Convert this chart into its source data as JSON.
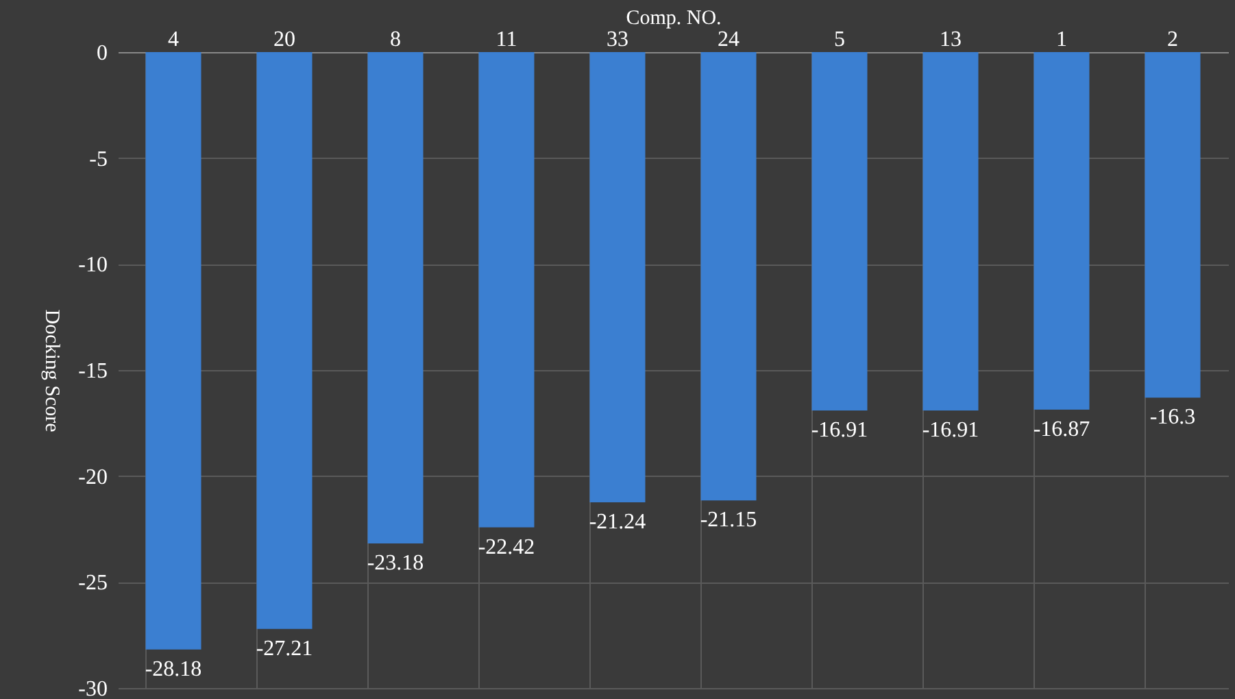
{
  "chart_data": {
    "type": "bar",
    "xlabel": "Comp. NO.",
    "ylabel": "Docking Score",
    "categories": [
      "4",
      "20",
      "8",
      "11",
      "33",
      "24",
      "5",
      "13",
      "1",
      "2"
    ],
    "values": [
      -28.18,
      -27.21,
      -23.18,
      -22.42,
      -21.24,
      -21.15,
      -16.91,
      -16.91,
      -16.87,
      -16.3
    ],
    "color": "#3b7fd1",
    "ylim": [
      -30,
      0
    ],
    "yticks": [
      0,
      -5,
      -10,
      -15,
      -20,
      -25,
      -30
    ],
    "grid": true,
    "data_labels": true
  }
}
